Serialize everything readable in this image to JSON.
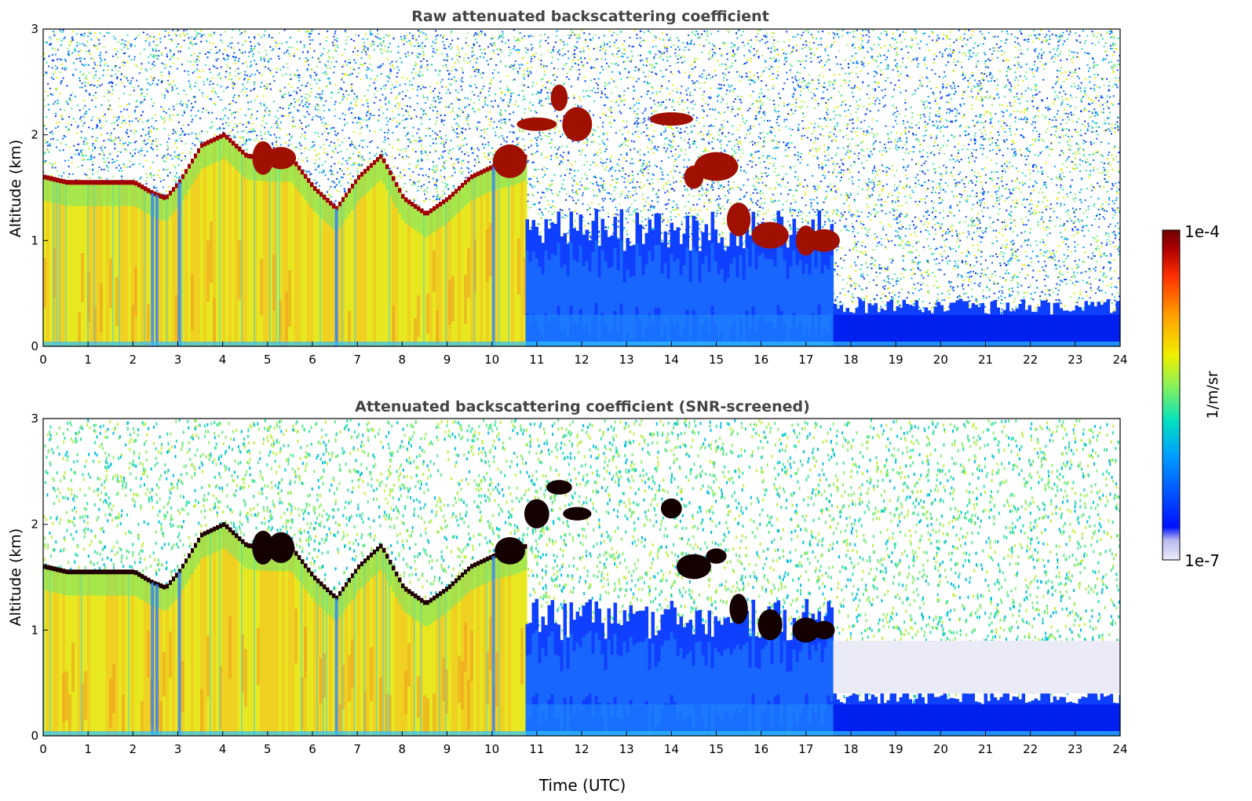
{
  "chart_data": [
    {
      "type": "heatmap",
      "title": "Raw attenuated backscattering coefficient",
      "xlabel": "",
      "ylabel": "Altitude (km)",
      "x_ticks": [
        "0",
        "1",
        "2",
        "3",
        "4",
        "5",
        "6",
        "7",
        "8",
        "9",
        "10",
        "11",
        "12",
        "13",
        "14",
        "15",
        "16",
        "17",
        "18",
        "19",
        "20",
        "21",
        "22",
        "23",
        "24"
      ],
      "y_ticks": [
        "0",
        "1",
        "2",
        "3"
      ],
      "xlim": [
        0,
        24
      ],
      "ylim": [
        0,
        3
      ],
      "features": {
        "boundary_layer_top_km": [
          [
            0,
            1.6
          ],
          [
            0.5,
            1.55
          ],
          [
            1,
            1.55
          ],
          [
            1.5,
            1.55
          ],
          [
            2,
            1.55
          ],
          [
            2.4,
            1.45
          ],
          [
            2.7,
            1.4
          ],
          [
            3,
            1.55
          ],
          [
            3.5,
            1.9
          ],
          [
            4,
            2.0
          ],
          [
            4.5,
            1.8
          ],
          [
            5,
            1.78
          ],
          [
            5.5,
            1.78
          ],
          [
            6,
            1.5
          ],
          [
            6.5,
            1.3
          ],
          [
            7,
            1.6
          ],
          [
            7.5,
            1.8
          ],
          [
            8,
            1.4
          ],
          [
            8.5,
            1.25
          ],
          [
            9,
            1.4
          ],
          [
            9.5,
            1.6
          ],
          [
            10,
            1.7
          ],
          [
            10.5,
            1.75
          ],
          [
            10.75,
            1.8
          ]
        ],
        "clouds": [
          {
            "x": 4.9,
            "y": 1.78
          },
          {
            "x": 5.3,
            "y": 1.78
          },
          {
            "x": 10.4,
            "y": 1.75
          },
          {
            "x": 11.0,
            "y": 2.1
          },
          {
            "x": 11.5,
            "y": 2.35
          },
          {
            "x": 11.9,
            "y": 2.1
          },
          {
            "x": 14.0,
            "y": 2.15
          },
          {
            "x": 14.5,
            "y": 1.6
          },
          {
            "x": 15.0,
            "y": 1.7
          },
          {
            "x": 15.5,
            "y": 1.2
          },
          {
            "x": 16.2,
            "y": 1.05
          },
          {
            "x": 17.0,
            "y": 1.0
          },
          {
            "x": 17.4,
            "y": 1.0
          }
        ],
        "clear_after_hour": 10.75,
        "low_signal_after_hour": 17.6
      }
    },
    {
      "type": "heatmap",
      "title": "Attenuated backscattering coefficient (SNR-screened)",
      "xlabel": "Time (UTC)",
      "ylabel": "Altitude (km)",
      "x_ticks": [
        "0",
        "1",
        "2",
        "3",
        "4",
        "5",
        "6",
        "7",
        "8",
        "9",
        "10",
        "11",
        "12",
        "13",
        "14",
        "15",
        "16",
        "17",
        "18",
        "19",
        "20",
        "21",
        "22",
        "23",
        "24"
      ],
      "y_ticks": [
        "0",
        "1",
        "2",
        "3"
      ],
      "xlim": [
        0,
        24
      ],
      "ylim": [
        0,
        3
      ],
      "screened": true
    }
  ],
  "colorbar": {
    "label": "1/m/sr",
    "max_label": "1e-4",
    "min_label": "1e-7",
    "colors": [
      "#ebebf8",
      "#0010ff",
      "#00a0ff",
      "#00e0c0",
      "#80f060",
      "#f0f000",
      "#ffa000",
      "#ff3000",
      "#b00000",
      "#700000"
    ]
  }
}
